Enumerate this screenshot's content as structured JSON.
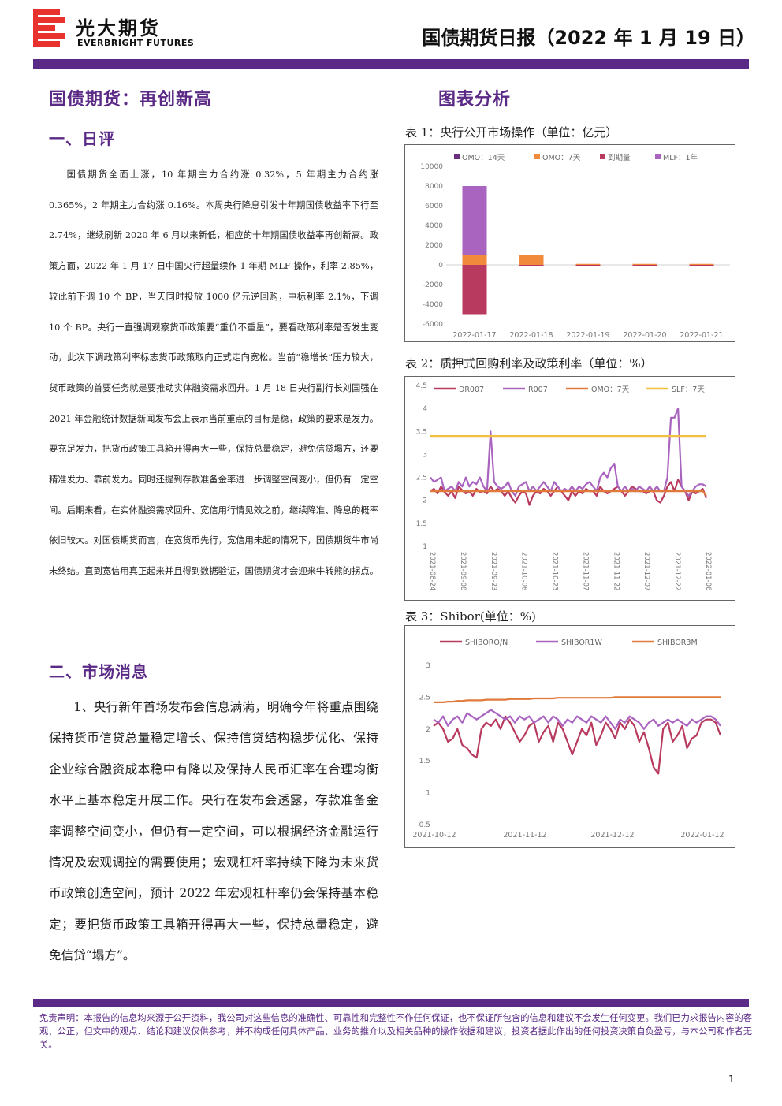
{
  "header": {
    "logo_cn": "光大期货",
    "logo_en": "EVERBRIGHT FUTURES",
    "report_title": "国债期货日报（2022 年 1 月 19 日）"
  },
  "colors": {
    "brand_purple": "#5b2a86",
    "logo_red": "#e8322d"
  },
  "left": {
    "main_title": "国债期货：再创新高",
    "section1_title": "一、日评",
    "commentary": "国债期货全面上涨，10 年期主力合约涨 0.32%，5 年期主力合约涨 0.365%，2 年期主力合约涨 0.16%。本周央行降息引发十年期国债收益率下行至 2.74%，继续刷新 2020 年 6 月以来新低，相应的十年期国债收益率再创新高。政策方面，2022 年 1 月 17 日中国央行超量续作 1 年期 MLF 操作，利率 2.85%，较此前下调 10 个 BP，当天同时投放 1000 亿元逆回购，中标利率 2.1%，下调 10 个 BP。央行一直强调观察货币政策要“重价不重量”，要看政策利率是否发生变动，此次下调政策利率标志货币政策取向正式走向宽松。当前“稳增长”压力较大，货币政策的首要任务就是要推动实体融资需求回升。1 月 18 日央行副行长刘国强在 2021 年金融统计数据新闻发布会上表示当前重点的目标是稳，政策的要求是发力。要充足发力，把货币政策工具箱开得再大一些，保持总量稳定，避免信贷塌方，还要精准发力、靠前发力。同时还提到存款准备金率进一步调整空间变小，但仍有一定空间。后期来看，在实体融资需求回升、宽信用行情见效之前，继续降准、降息的概率依旧较大。对国债期货而言，在宽货币先行，宽信用未起的情况下，国债期货牛市尚未终结。直到宽信用真正起来并且得到数据验证，国债期货才会迎来牛转熊的拐点。",
    "section2_title": "二、市场消息",
    "news": "1、央行新年首场发布会信息满满，明确今年将重点围绕保持货币信贷总量稳定增长、保持信贷结构稳步优化、保持企业综合融资成本稳中有降以及保持人民币汇率在合理均衡水平上基本稳定开展工作。央行在发布会透露，存款准备金率调整空间变小，但仍有一定空间，可以根据经济金融运行情况及宏观调控的需要使用；宏观杠杆率持续下降为未来货币政策创造空间，预计 2022 年宏观杠杆率仍会保持基本稳定；要把货币政策工具箱开得再大一些，保持总量稳定，避免信贷“塌方”。"
  },
  "right": {
    "section_title": "图表分析",
    "caption1": "表 1：央行公开市场操作（单位：亿元）",
    "caption2": "表 2：质押式回购利率及政策利率（单位：%）",
    "caption3": "表 3：Shibor(单位：%)"
  },
  "chart_data": [
    {
      "type": "bar",
      "categories": [
        "2022-01-17",
        "2022-01-18",
        "2022-01-19",
        "2022-01-20",
        "2022-01-21"
      ],
      "ylim": [
        -6000,
        10000
      ],
      "yticks": [
        10000,
        8000,
        6000,
        4000,
        2000,
        0,
        -2000,
        -4000,
        -6000
      ],
      "series": [
        {
          "name": "OMO：14天",
          "color": "#6b2f7f",
          "values": [
            0,
            0,
            0,
            0,
            0
          ]
        },
        {
          "name": "OMO：7天",
          "color": "#f28a3c",
          "values": [
            1000,
            1000,
            100,
            100,
            100
          ]
        },
        {
          "name": "到期量",
          "color": "#b83a5e",
          "values": [
            -5000,
            -100,
            -100,
            -100,
            -100
          ]
        },
        {
          "name": "MLF：1年",
          "color": "#a964c0",
          "values": [
            7000,
            0,
            0,
            0,
            0
          ]
        }
      ]
    },
    {
      "type": "line",
      "ylim": [
        1,
        4.5
      ],
      "yticks": [
        4.5,
        4,
        3.5,
        3,
        2.5,
        2,
        1.5,
        1
      ],
      "xtick_labels": [
        "2021-08-24",
        "2021-09-08",
        "2021-09-23",
        "2021-10-08",
        "2021-10-23",
        "2021-11-07",
        "2021-11-22",
        "2021-12-07",
        "2021-12-22",
        "2022-01-06"
      ],
      "series": [
        {
          "name": "DR007",
          "color": "#b83a5e",
          "values": [
            2.2,
            2.25,
            2.15,
            2.3,
            2.18,
            2.1,
            2.2,
            2.05,
            2.3,
            2.22,
            2.15,
            2.2,
            2.1,
            2.25,
            2.18,
            2.2,
            2.15,
            2.3,
            2.2,
            2.25,
            2.2,
            2.1,
            2.2,
            2.05,
            1.95,
            2.1,
            2.2,
            2.15,
            1.9,
            2.1,
            2.2,
            2.15,
            2.25,
            2.2,
            2.1,
            2.2,
            2.3,
            2.2,
            2.1,
            2.0,
            2.2,
            2.1,
            2.2,
            2.15,
            2.25,
            2.2,
            2.2,
            2.1,
            2.3,
            2.2,
            2.15,
            2.2,
            2.25,
            2.3,
            2.2,
            2.1,
            2.2,
            2.3,
            2.25,
            2.2,
            2.2,
            2.15,
            2.2,
            2.2,
            2.0,
            1.95,
            2.1,
            2.3,
            2.4,
            2.2,
            2.45,
            2.3,
            2.2,
            2.0,
            2.2,
            2.15,
            2.2,
            2.25,
            2.05
          ]
        },
        {
          "name": "R007",
          "color": "#a964c0",
          "values": [
            2.5,
            2.4,
            2.45,
            2.5,
            2.2,
            2.25,
            2.3,
            2.2,
            2.4,
            2.3,
            2.5,
            2.3,
            2.4,
            2.35,
            2.5,
            2.3,
            2.2,
            3.5,
            2.4,
            2.3,
            2.25,
            2.3,
            2.4,
            2.2,
            2.1,
            2.3,
            2.35,
            2.4,
            2.2,
            2.3,
            2.2,
            2.3,
            2.4,
            2.3,
            2.2,
            2.4,
            2.3,
            2.2,
            2.25,
            2.2,
            2.3,
            2.2,
            2.3,
            2.25,
            2.35,
            2.4,
            2.3,
            2.2,
            2.5,
            2.6,
            2.5,
            2.7,
            2.8,
            2.3,
            2.2,
            2.3,
            2.2,
            2.25,
            2.2,
            2.3,
            2.25,
            2.2,
            2.3,
            2.2,
            2.3,
            2.2,
            2.2,
            2.5,
            3.8,
            3.8,
            4.0,
            2.3,
            2.2,
            2.1,
            2.2,
            2.3,
            2.35,
            2.35,
            2.3
          ]
        },
        {
          "name": "OMO：7天",
          "color": "#e07a3a",
          "values": [
            2.2,
            2.2,
            2.2,
            2.2,
            2.2,
            2.2,
            2.2,
            2.2,
            2.2,
            2.2,
            2.2,
            2.2,
            2.2,
            2.2,
            2.2,
            2.2,
            2.2,
            2.2,
            2.2,
            2.2,
            2.2,
            2.2,
            2.2,
            2.2,
            2.2,
            2.2,
            2.2,
            2.2,
            2.2,
            2.2,
            2.2,
            2.2,
            2.2,
            2.2,
            2.2,
            2.2,
            2.2,
            2.2,
            2.2,
            2.2,
            2.2,
            2.2,
            2.2,
            2.2,
            2.2,
            2.2,
            2.2,
            2.2,
            2.2,
            2.2,
            2.2,
            2.2,
            2.2,
            2.2,
            2.2,
            2.2,
            2.2,
            2.2,
            2.2,
            2.2,
            2.2,
            2.2,
            2.2,
            2.2,
            2.2,
            2.2,
            2.2,
            2.2,
            2.2,
            2.2,
            2.2,
            2.2,
            2.2,
            2.2,
            2.2,
            2.2,
            2.2,
            2.2,
            2.1
          ]
        },
        {
          "name": "SLF：7天",
          "color": "#f2c040",
          "values": [
            3.4,
            3.4,
            3.4,
            3.4,
            3.4,
            3.4,
            3.4,
            3.4,
            3.4,
            3.4,
            3.4,
            3.4,
            3.4,
            3.4,
            3.4,
            3.4,
            3.4,
            3.4,
            3.4,
            3.4,
            3.4,
            3.4,
            3.4,
            3.4,
            3.4,
            3.4,
            3.4,
            3.4,
            3.4,
            3.4,
            3.4,
            3.4,
            3.4,
            3.4,
            3.4,
            3.4,
            3.4,
            3.4,
            3.4,
            3.4,
            3.4,
            3.4,
            3.4,
            3.4,
            3.4,
            3.4,
            3.4,
            3.4,
            3.4,
            3.4,
            3.4,
            3.4,
            3.4,
            3.4,
            3.4,
            3.4,
            3.4,
            3.4,
            3.4,
            3.4,
            3.4,
            3.4,
            3.4,
            3.4,
            3.4,
            3.4,
            3.4,
            3.4,
            3.4,
            3.4,
            3.4,
            3.4,
            3.4,
            3.4,
            3.4,
            3.4,
            3.4,
            3.4,
            3.4
          ]
        }
      ]
    },
    {
      "type": "line",
      "ylim": [
        0.5,
        3
      ],
      "yticks": [
        3,
        2.5,
        2,
        1.5,
        1,
        0.5
      ],
      "xtick_labels": [
        "2021-10-12",
        "2021-11-12",
        "2021-12-12",
        "2022-01-12"
      ],
      "series": [
        {
          "name": "SHIBORO/N",
          "color": "#b83a5e",
          "values": [
            2.05,
            2.1,
            2.0,
            1.8,
            1.85,
            2.0,
            1.75,
            1.7,
            1.6,
            1.55,
            2.0,
            2.1,
            2.05,
            2.15,
            2.0,
            2.2,
            2.1,
            1.95,
            1.8,
            1.9,
            2.05,
            2.1,
            1.8,
            1.95,
            2.05,
            1.8,
            2.1,
            2.0,
            1.8,
            1.6,
            1.8,
            2.0,
            1.9,
            2.1,
            1.75,
            1.9,
            2.1,
            2.0,
            1.85,
            2.1,
            2.0,
            2.15,
            2.05,
            1.8,
            1.95,
            1.7,
            1.4,
            1.3,
            2.0,
            2.1,
            1.8,
            1.9,
            2.05,
            1.7,
            1.85,
            1.9,
            2.1,
            2.15,
            2.15,
            2.1,
            1.9
          ]
        },
        {
          "name": "SHIBOR1W",
          "color": "#a964c0",
          "values": [
            2.15,
            2.1,
            2.2,
            2.05,
            2.15,
            2.2,
            2.1,
            2.25,
            2.2,
            2.15,
            2.2,
            2.25,
            2.3,
            2.25,
            2.2,
            2.15,
            2.2,
            2.1,
            2.2,
            2.15,
            2.2,
            2.1,
            2.15,
            2.2,
            2.1,
            2.2,
            2.15,
            2.05,
            2.15,
            2.1,
            2.2,
            2.15,
            2.1,
            2.2,
            2.15,
            2.1,
            2.2,
            2.1,
            2.0,
            2.15,
            2.1,
            2.2,
            2.15,
            2.1,
            2.0,
            2.1,
            2.15,
            2.05,
            2.1,
            2.15,
            2.1,
            2.15,
            2.1,
            2.05,
            2.15,
            2.1,
            2.15,
            2.2,
            2.2,
            2.15,
            2.05
          ]
        },
        {
          "name": "SHIBOR3M",
          "color": "#e07a3a",
          "values": [
            2.42,
            2.42,
            2.42,
            2.43,
            2.43,
            2.44,
            2.44,
            2.45,
            2.45,
            2.45,
            2.45,
            2.46,
            2.46,
            2.46,
            2.46,
            2.46,
            2.47,
            2.47,
            2.47,
            2.47,
            2.47,
            2.48,
            2.48,
            2.48,
            2.48,
            2.48,
            2.49,
            2.49,
            2.49,
            2.49,
            2.49,
            2.49,
            2.49,
            2.49,
            2.49,
            2.49,
            2.49,
            2.49,
            2.5,
            2.5,
            2.5,
            2.5,
            2.5,
            2.5,
            2.5,
            2.5,
            2.5,
            2.5,
            2.5,
            2.5,
            2.5,
            2.5,
            2.5,
            2.5,
            2.5,
            2.5,
            2.5,
            2.5,
            2.5,
            2.5,
            2.5
          ]
        }
      ]
    }
  ],
  "footer": {
    "disclaimer": "免责声明：本报告的信息均来源于公开资料，我公司对这些信息的准确性、可靠性和完整性不作任何保证，也不保证所包含的信息和建议不会发生任何变更。我们已力求报告内容的客观、公正，但文中的观点、结论和建议仅供参考，并不构成任何具体产品、业务的推介以及相关品种的操作依据和建议，投资者据此作出的任何投资决策自负盈亏，与本公司和作者无关。",
    "page_number": "1"
  }
}
